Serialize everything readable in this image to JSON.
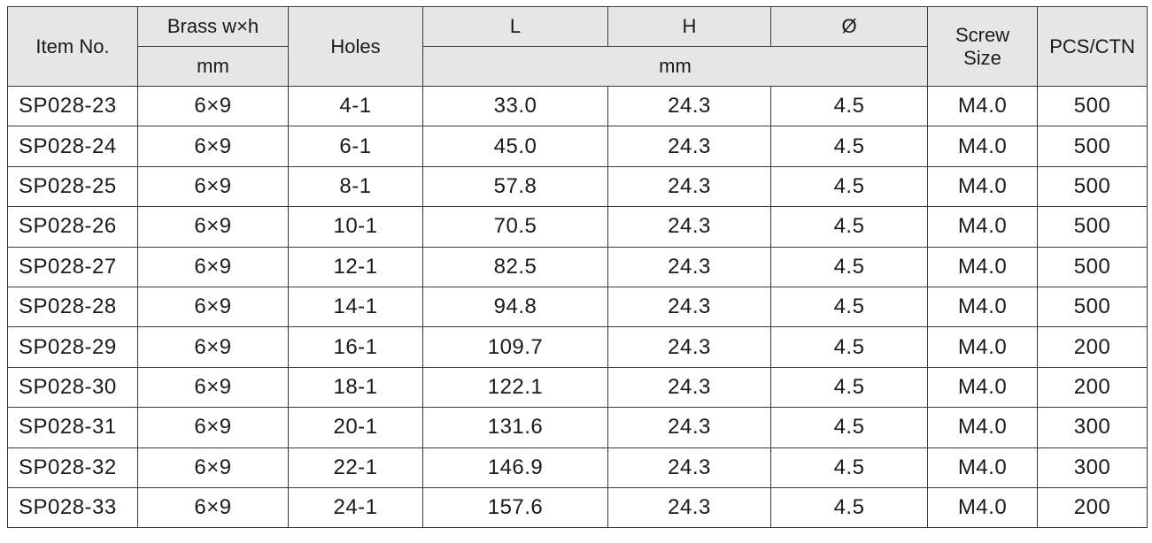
{
  "header": {
    "item_no": "Item No.",
    "brass": "Brass w×h",
    "holes": "Holes",
    "l": "L",
    "h": "H",
    "dia": "Ø",
    "screw_line1": "Screw",
    "screw_line2": "Size",
    "pcs": "PCS/CTN",
    "unit_brass": "mm",
    "unit_dims": "mm"
  },
  "rows": [
    {
      "item": "SP028-23",
      "brass": "6×9",
      "holes": "4-1",
      "l": "33.0",
      "h": "24.3",
      "dia": "4.5",
      "screw": "M4.0",
      "pcs": "500"
    },
    {
      "item": "SP028-24",
      "brass": "6×9",
      "holes": "6-1",
      "l": "45.0",
      "h": "24.3",
      "dia": "4.5",
      "screw": "M4.0",
      "pcs": "500"
    },
    {
      "item": "SP028-25",
      "brass": "6×9",
      "holes": "8-1",
      "l": "57.8",
      "h": "24.3",
      "dia": "4.5",
      "screw": "M4.0",
      "pcs": "500"
    },
    {
      "item": "SP028-26",
      "brass": "6×9",
      "holes": "10-1",
      "l": "70.5",
      "h": "24.3",
      "dia": "4.5",
      "screw": "M4.0",
      "pcs": "500"
    },
    {
      "item": "SP028-27",
      "brass": "6×9",
      "holes": "12-1",
      "l": "82.5",
      "h": "24.3",
      "dia": "4.5",
      "screw": "M4.0",
      "pcs": "500"
    },
    {
      "item": "SP028-28",
      "brass": "6×9",
      "holes": "14-1",
      "l": "94.8",
      "h": "24.3",
      "dia": "4.5",
      "screw": "M4.0",
      "pcs": "500"
    },
    {
      "item": "SP028-29",
      "brass": "6×9",
      "holes": "16-1",
      "l": "109.7",
      "h": "24.3",
      "dia": "4.5",
      "screw": "M4.0",
      "pcs": "200"
    },
    {
      "item": "SP028-30",
      "brass": "6×9",
      "holes": "18-1",
      "l": "122.1",
      "h": "24.3",
      "dia": "4.5",
      "screw": "M4.0",
      "pcs": "200"
    },
    {
      "item": "SP028-31",
      "brass": "6×9",
      "holes": "20-1",
      "l": "131.6",
      "h": "24.3",
      "dia": "4.5",
      "screw": "M4.0",
      "pcs": "300"
    },
    {
      "item": "SP028-32",
      "brass": "6×9",
      "holes": "22-1",
      "l": "146.9",
      "h": "24.3",
      "dia": "4.5",
      "screw": "M4.0",
      "pcs": "300"
    },
    {
      "item": "SP028-33",
      "brass": "6×9",
      "holes": "24-1",
      "l": "157.6",
      "h": "24.3",
      "dia": "4.5",
      "screw": "M4.0",
      "pcs": "200"
    }
  ]
}
